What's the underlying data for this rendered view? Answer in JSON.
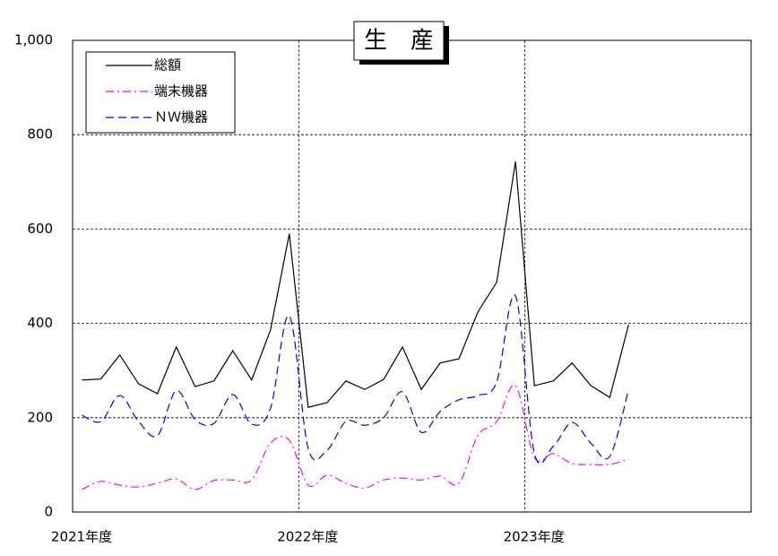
{
  "chart_data": {
    "type": "line",
    "title": "生　産",
    "x": [
      0.5,
      1.5,
      2.5,
      3.5,
      4.5,
      5.5,
      6.5,
      7.5,
      8.5,
      9.5,
      10.5,
      11.5,
      12.5,
      13.5,
      14.5,
      15.5,
      16.5,
      17.5,
      18.5,
      19.5,
      20.5,
      21.5,
      22.5,
      23.5,
      24.5,
      25.5,
      26.5,
      27.5,
      28.5,
      29.5
    ],
    "xlim": [
      0,
      36
    ],
    "xticks": [
      {
        "value": 0,
        "label": "2021年度"
      },
      {
        "value": 12,
        "label": "2022年度"
      },
      {
        "value": 24,
        "label": "2023年度"
      }
    ],
    "ylim": [
      0,
      1000
    ],
    "yticks": [
      0,
      200,
      400,
      600,
      800,
      {
        "value": 1000,
        "label": "1,000"
      }
    ],
    "grid": true,
    "legend": "upper left",
    "series": [
      {
        "name": "総額",
        "color": "#000000",
        "style": "solid",
        "values": [
          280,
          282,
          333,
          272,
          251,
          350,
          266,
          278,
          342,
          280,
          386,
          590,
          222,
          232,
          278,
          260,
          281,
          350,
          260,
          316,
          325,
          424,
          487,
          743,
          268,
          278,
          316,
          268,
          243,
          397
        ]
      },
      {
        "name": "端末機器",
        "color": "#ff00ff",
        "style": "dashdot",
        "values": [
          48,
          65,
          57,
          53,
          61,
          70,
          48,
          67,
          68,
          68,
          146,
          152,
          57,
          78,
          61,
          51,
          68,
          72,
          68,
          76,
          61,
          162,
          192,
          268,
          116,
          124,
          103,
          101,
          101,
          112
        ]
      },
      {
        "name": "ＮＷ機器",
        "color": "#0000ff",
        "style": "dashed",
        "values": [
          205,
          192,
          247,
          192,
          162,
          257,
          196,
          188,
          249,
          186,
          220,
          416,
          135,
          131,
          192,
          184,
          200,
          255,
          169,
          213,
          238,
          247,
          276,
          458,
          125,
          139,
          190,
          146,
          118,
          260
        ]
      }
    ]
  }
}
